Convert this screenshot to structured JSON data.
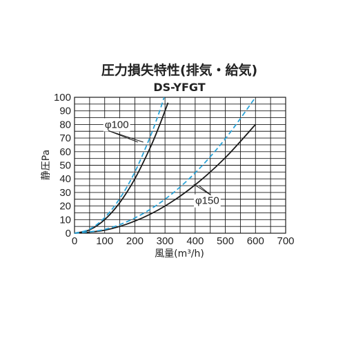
{
  "chart_data": {
    "type": "line",
    "title": "圧力損失特性(排気・給気)",
    "subtitle": "DS-YFGT",
    "xlabel": "風量(m³/h)",
    "ylabel": "静圧Pa",
    "xlim": [
      0,
      700
    ],
    "ylim": [
      0,
      100
    ],
    "xticks": [
      "0",
      "100",
      "200",
      "300",
      "400",
      "500",
      "600",
      "700"
    ],
    "yticks": [
      "0",
      "10",
      "20",
      "30",
      "40",
      "50",
      "60",
      "70",
      "80",
      "90",
      "100"
    ],
    "grid": true,
    "colors": {
      "black": "#1a1a1a",
      "blue": "#2aa3d8"
    },
    "series": [
      {
        "color": "black",
        "dash": false,
        "x": [
          0,
          50,
          100,
          150,
          200,
          250,
          280,
          310
        ],
        "y": [
          0,
          2.5,
          10,
          22.5,
          40,
          62.5,
          78.4,
          96
        ]
      },
      {
        "color": "blue",
        "dash": true,
        "x": [
          0,
          50,
          100,
          150,
          200,
          250,
          280,
          297
        ],
        "y": [
          0,
          3,
          11.5,
          25.5,
          45,
          70.5,
          88.5,
          100
        ]
      },
      {
        "color": "black",
        "dash": false,
        "x": [
          0,
          100,
          200,
          300,
          400,
          500,
          600
        ],
        "y": [
          0,
          2.2,
          8.9,
          20,
          35.6,
          55.6,
          80
        ]
      },
      {
        "color": "blue",
        "dash": true,
        "x": [
          0,
          100,
          200,
          300,
          400,
          500,
          600
        ],
        "y": [
          0,
          2.8,
          11.2,
          25,
          44.4,
          69.5,
          100
        ]
      }
    ],
    "annotations": [
      {
        "text": "φ100",
        "x": 140,
        "y": 80,
        "targets": [
          [
            210,
            67
          ],
          [
            228,
            67
          ]
        ]
      },
      {
        "text": "φ150",
        "x": 440,
        "y": 24,
        "targets": [
          [
            395,
            36
          ],
          [
            413,
            35
          ]
        ]
      }
    ]
  }
}
